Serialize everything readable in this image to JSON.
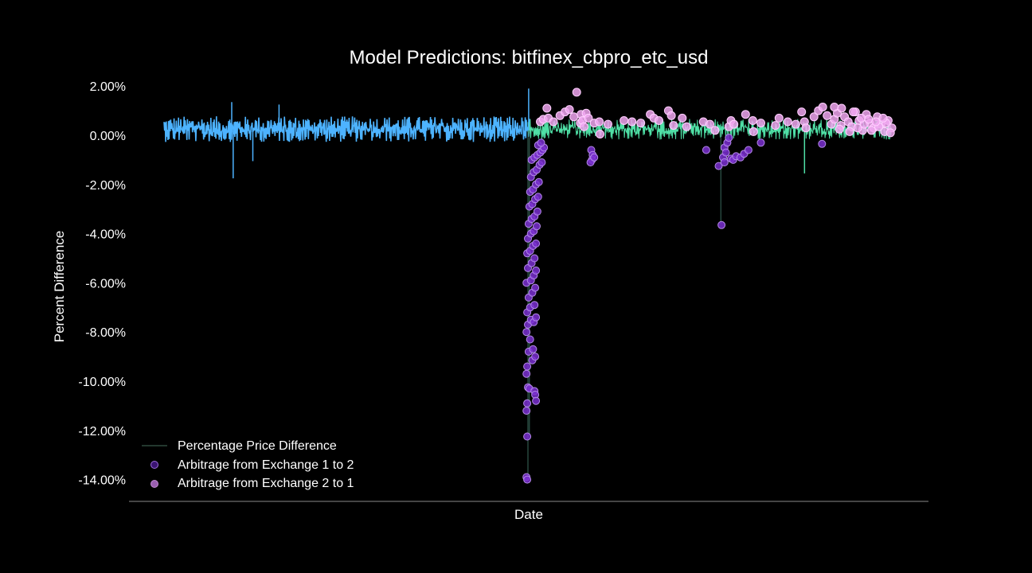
{
  "chart_data": {
    "type": "scatter",
    "title": "Model Predictions: bitfinex_cbpro_etc_usd",
    "xlabel": "Date",
    "ylabel": "Percent Difference",
    "ylim": [
      -14.5,
      2.4
    ],
    "yticks": [
      "2.00%",
      "0.00%",
      "-2.00%",
      "-4.00%",
      "-6.00%",
      "-8.00%",
      "-10.00%",
      "-12.00%",
      "-14.00%"
    ],
    "ytick_values": [
      2,
      0,
      -2,
      -4,
      -6,
      -8,
      -10,
      -12,
      -14
    ],
    "x_is_index": true,
    "grid": false,
    "legend_position": "lower-left",
    "colors": {
      "background": "#000000",
      "line_early": "#4db3ff",
      "line_mid": "#45c8e6",
      "line_late": "#4fe0a6",
      "arb_1_to_2": "#7a2fd0",
      "arb_2_to_1": "#f0a6f0"
    },
    "series": [
      {
        "name": "Percentage Price Difference",
        "kind": "line",
        "segments": [
          {
            "x_start": 0.0,
            "x_end": 0.503,
            "mean": 0.25,
            "amp": 0.55,
            "color_key": "line_early",
            "stroke": 1.6
          },
          {
            "x_start": 0.503,
            "x_end": 0.5,
            "mean": 0.2,
            "amp": 0.3,
            "color_key": "line_mid",
            "stroke": 1.0
          },
          {
            "x_start": 0.5,
            "x_end": 1.0,
            "mean": 0.25,
            "amp": 0.45,
            "color_key": "line_late",
            "stroke": 1.0
          }
        ],
        "spikes": [
          {
            "x": 0.095,
            "y": -1.75
          },
          {
            "x": 0.093,
            "y": 1.35
          },
          {
            "x": 0.122,
            "y": -1.05
          },
          {
            "x": 0.158,
            "y": 1.25
          },
          {
            "x": 0.5,
            "y": -14.0
          },
          {
            "x": 0.502,
            "y": -12.2
          },
          {
            "x": 0.501,
            "y": 1.9
          },
          {
            "x": 0.765,
            "y": -3.6
          },
          {
            "x": 0.88,
            "y": -1.55
          }
        ]
      },
      {
        "name": "Arbitrage from Exchange 1 to 2",
        "kind": "scatter",
        "points": [
          [
            0.498,
            -13.9
          ],
          [
            0.499,
            -14.0
          ],
          [
            0.499,
            -12.25
          ],
          [
            0.498,
            -11.2
          ],
          [
            0.499,
            -10.9
          ],
          [
            0.5,
            -10.25
          ],
          [
            0.502,
            -10.3
          ],
          [
            0.509,
            -10.4
          ],
          [
            0.51,
            -10.55
          ],
          [
            0.511,
            -10.8
          ],
          [
            0.506,
            -9.15
          ],
          [
            0.51,
            -9.0
          ],
          [
            0.498,
            -9.7
          ],
          [
            0.499,
            -9.4
          ],
          [
            0.501,
            -8.8
          ],
          [
            0.503,
            -8.3
          ],
          [
            0.498,
            -8.0
          ],
          [
            0.507,
            -8.7
          ],
          [
            0.5,
            -7.7
          ],
          [
            0.504,
            -7.5
          ],
          [
            0.508,
            -7.6
          ],
          [
            0.511,
            -7.4
          ],
          [
            0.499,
            -7.2
          ],
          [
            0.503,
            -7.0
          ],
          [
            0.509,
            -6.9
          ],
          [
            0.501,
            -6.6
          ],
          [
            0.506,
            -6.4
          ],
          [
            0.51,
            -6.2
          ],
          [
            0.498,
            -6.0
          ],
          [
            0.504,
            -5.9
          ],
          [
            0.508,
            -5.7
          ],
          [
            0.511,
            -5.5
          ],
          [
            0.5,
            -5.4
          ],
          [
            0.505,
            -5.2
          ],
          [
            0.509,
            -5.0
          ],
          [
            0.499,
            -4.8
          ],
          [
            0.503,
            -4.7
          ],
          [
            0.507,
            -4.5
          ],
          [
            0.511,
            -4.4
          ],
          [
            0.5,
            -4.2
          ],
          [
            0.504,
            -4.0
          ],
          [
            0.508,
            -3.9
          ],
          [
            0.512,
            -3.7
          ],
          [
            0.501,
            -3.6
          ],
          [
            0.505,
            -3.4
          ],
          [
            0.509,
            -3.3
          ],
          [
            0.513,
            -3.1
          ],
          [
            0.502,
            -2.9
          ],
          [
            0.506,
            -2.8
          ],
          [
            0.51,
            -2.6
          ],
          [
            0.514,
            -2.5
          ],
          [
            0.503,
            -2.3
          ],
          [
            0.507,
            -2.2
          ],
          [
            0.511,
            -2.0
          ],
          [
            0.515,
            -1.9
          ],
          [
            0.504,
            -1.7
          ],
          [
            0.508,
            -1.5
          ],
          [
            0.512,
            -1.4
          ],
          [
            0.516,
            -1.2
          ],
          [
            0.519,
            -1.1
          ],
          [
            0.505,
            -1.0
          ],
          [
            0.509,
            -0.9
          ],
          [
            0.513,
            -0.8
          ],
          [
            0.517,
            -0.7
          ],
          [
            0.52,
            -0.6
          ],
          [
            0.522,
            -0.5
          ],
          [
            0.514,
            -0.4
          ],
          [
            0.518,
            -0.3
          ],
          [
            0.587,
            -0.6
          ],
          [
            0.589,
            -0.8
          ],
          [
            0.588,
            -1.0
          ],
          [
            0.586,
            -1.1
          ],
          [
            0.591,
            -0.9
          ],
          [
            0.745,
            -0.6
          ],
          [
            0.82,
            -0.3
          ],
          [
            0.904,
            -0.35
          ],
          [
            0.762,
            -1.25
          ],
          [
            0.768,
            -0.9
          ],
          [
            0.77,
            -0.5
          ],
          [
            0.774,
            -0.3
          ],
          [
            0.776,
            -0.1
          ],
          [
            0.77,
            -1.1
          ],
          [
            0.772,
            -0.7
          ],
          [
            0.779,
            -0.95
          ],
          [
            0.782,
            -1.0
          ],
          [
            0.786,
            -0.85
          ],
          [
            0.792,
            -0.9
          ],
          [
            0.797,
            -0.75
          ],
          [
            0.803,
            -0.6
          ],
          [
            0.766,
            -3.65
          ]
        ]
      },
      {
        "name": "Arbitrage from Exchange 2 to 1",
        "kind": "scatter",
        "points": [
          [
            0.526,
            1.1
          ],
          [
            0.517,
            0.55
          ],
          [
            0.521,
            0.65
          ],
          [
            0.528,
            0.7
          ],
          [
            0.535,
            0.55
          ],
          [
            0.544,
            0.8
          ],
          [
            0.551,
            0.95
          ],
          [
            0.557,
            1.05
          ],
          [
            0.563,
            0.75
          ],
          [
            0.567,
            1.75
          ],
          [
            0.572,
            0.5
          ],
          [
            0.573,
            0.85
          ],
          [
            0.575,
            0.6
          ],
          [
            0.577,
            0.35
          ],
          [
            0.58,
            0.9
          ],
          [
            0.583,
            0.7
          ],
          [
            0.591,
            0.5
          ],
          [
            0.598,
            0.55
          ],
          [
            0.599,
            0.05
          ],
          [
            0.61,
            0.45
          ],
          [
            0.632,
            0.6
          ],
          [
            0.643,
            0.55
          ],
          [
            0.655,
            0.5
          ],
          [
            0.668,
            0.85
          ],
          [
            0.673,
            0.7
          ],
          [
            0.68,
            0.6
          ],
          [
            0.693,
            1.0
          ],
          [
            0.697,
            0.8
          ],
          [
            0.7,
            0.4
          ],
          [
            0.712,
            0.7
          ],
          [
            0.718,
            0.35
          ],
          [
            0.741,
            0.55
          ],
          [
            0.75,
            0.45
          ],
          [
            0.757,
            0.2
          ],
          [
            0.776,
            0.35
          ],
          [
            0.779,
            0.6
          ],
          [
            0.783,
            0.45
          ],
          [
            0.799,
            0.85
          ],
          [
            0.809,
            0.6
          ],
          [
            0.82,
            0.5
          ],
          [
            0.84,
            0.4
          ],
          [
            0.845,
            0.7
          ],
          [
            0.857,
            0.55
          ],
          [
            0.868,
            0.45
          ],
          [
            0.876,
            0.95
          ],
          [
            0.88,
            0.55
          ],
          [
            0.893,
            0.75
          ],
          [
            0.899,
            1.0
          ],
          [
            0.905,
            1.15
          ],
          [
            0.911,
            0.8
          ],
          [
            0.917,
            0.45
          ],
          [
            0.921,
            0.65
          ],
          [
            0.925,
            0.9
          ],
          [
            0.93,
            0.4
          ],
          [
            0.935,
            0.75
          ],
          [
            0.94,
            0.55
          ],
          [
            0.945,
            0.35
          ],
          [
            0.95,
            0.95
          ],
          [
            0.955,
            0.6
          ],
          [
            0.96,
            0.2
          ],
          [
            0.965,
            0.85
          ],
          [
            0.97,
            0.5
          ],
          [
            0.975,
            0.3
          ],
          [
            0.98,
            0.75
          ],
          [
            0.985,
            0.45
          ],
          [
            0.99,
            0.15
          ],
          [
            0.995,
            0.6
          ],
          [
            1.0,
            0.3
          ],
          [
            0.928,
            0.25
          ],
          [
            0.942,
            0.15
          ],
          [
            0.953,
            0.3
          ],
          [
            0.962,
            0.45
          ],
          [
            0.972,
            0.2
          ],
          [
            0.982,
            0.35
          ],
          [
            0.992,
            0.5
          ],
          [
            0.958,
            0.7
          ],
          [
            0.968,
            0.65
          ],
          [
            0.978,
            0.55
          ],
          [
            0.988,
            0.7
          ],
          [
            0.998,
            0.1
          ],
          [
            0.921,
            1.15
          ],
          [
            0.931,
            1.1
          ],
          [
            0.947,
            0.95
          ],
          [
            0.882,
            0.3
          ],
          [
            0.81,
            0.15
          ]
        ]
      }
    ],
    "legend": [
      {
        "label": "Percentage Price Difference",
        "marker": "line"
      },
      {
        "label": "Arbitrage from Exchange 1 to 2",
        "marker": "circle-1to2"
      },
      {
        "label": "Arbitrage from Exchange 2 to 1",
        "marker": "circle-2to1"
      }
    ]
  }
}
